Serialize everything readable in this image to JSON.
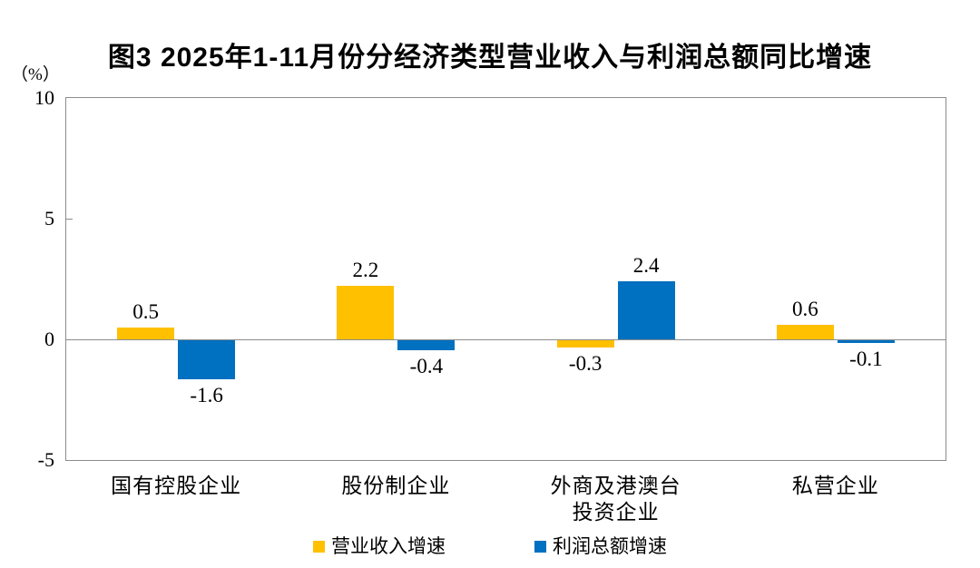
{
  "page": {
    "background": "#ffffff"
  },
  "chart_data": {
    "type": "bar",
    "title": "图3  2025年1-11月份分经济类型营业收入与利润总额同比增速",
    "unit_label": "（%）",
    "categories": [
      "国有控股企业",
      "股份制企业",
      "外商及港澳台\n投资企业",
      "私营企业"
    ],
    "series": [
      {
        "name": "营业收入增速",
        "color": "#FFC000",
        "values": [
          0.5,
          2.2,
          -0.3,
          0.6
        ]
      },
      {
        "name": "利润总额增速",
        "color": "#0070C0",
        "values": [
          -1.6,
          -0.4,
          2.4,
          -0.1
        ]
      }
    ],
    "ylim": [
      -5,
      10
    ],
    "yticks": [
      10,
      5,
      0,
      -5
    ],
    "grid": "zero-line-only",
    "legend_position": "bottom",
    "value_labels": true,
    "value_label_decimals": 1
  },
  "colors": {
    "axis": "#8c8c8c",
    "text": "#000000"
  }
}
